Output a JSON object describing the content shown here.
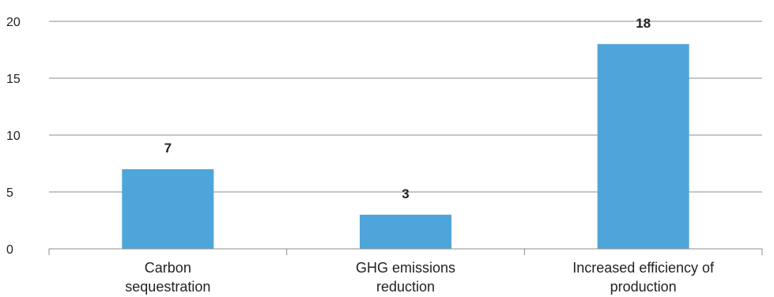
{
  "chart_data": {
    "type": "bar",
    "categories": [
      [
        "Carbon",
        "sequestration"
      ],
      [
        "GHG emissions",
        "reduction"
      ],
      [
        "Increased efficiency of",
        "production"
      ]
    ],
    "values": [
      7,
      3,
      18
    ],
    "data_labels": [
      "7",
      "3",
      "18"
    ],
    "title": "",
    "xlabel": "",
    "ylabel": "",
    "ylim": [
      0,
      20
    ],
    "yticks": [
      0,
      5,
      10,
      15,
      20
    ],
    "grid": true,
    "legend": "none",
    "colors": {
      "bar": "#4ea5d9",
      "grid": "#8c8c8c",
      "axis": "#8c8c8c",
      "text": "#222222"
    }
  }
}
